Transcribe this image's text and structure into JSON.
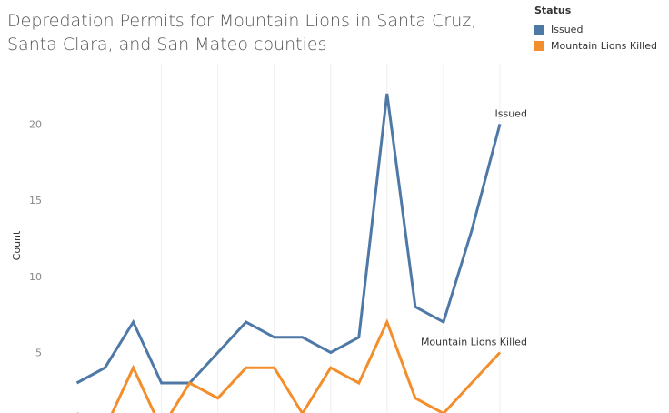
{
  "title": "Depredation Permits for Mountain Lions in Santa Cruz, Santa Clara, and San Mateo counties",
  "legend": {
    "title": "Status",
    "items": [
      {
        "label": "Issued",
        "color": "#4e79a7"
      },
      {
        "label": "Mountain Lions Killed",
        "color": "#f28e2b"
      }
    ]
  },
  "chart_data": {
    "type": "line",
    "ylabel": "Count",
    "ylim": [
      0,
      23
    ],
    "yticks": [
      5,
      10,
      15,
      20
    ],
    "grid": true,
    "series": [
      {
        "name": "Issued",
        "color": "#4e79a7",
        "values": [
          3,
          4,
          7,
          3,
          3,
          5,
          7,
          6,
          6,
          5,
          6,
          22,
          8,
          7,
          13,
          20
        ]
      },
      {
        "name": "Mountain Lions Killed",
        "color": "#f28e2b",
        "values": [
          1,
          0,
          4,
          0,
          3,
          2,
          4,
          4,
          1,
          4,
          3,
          7,
          2,
          1,
          3,
          5
        ]
      }
    ]
  }
}
